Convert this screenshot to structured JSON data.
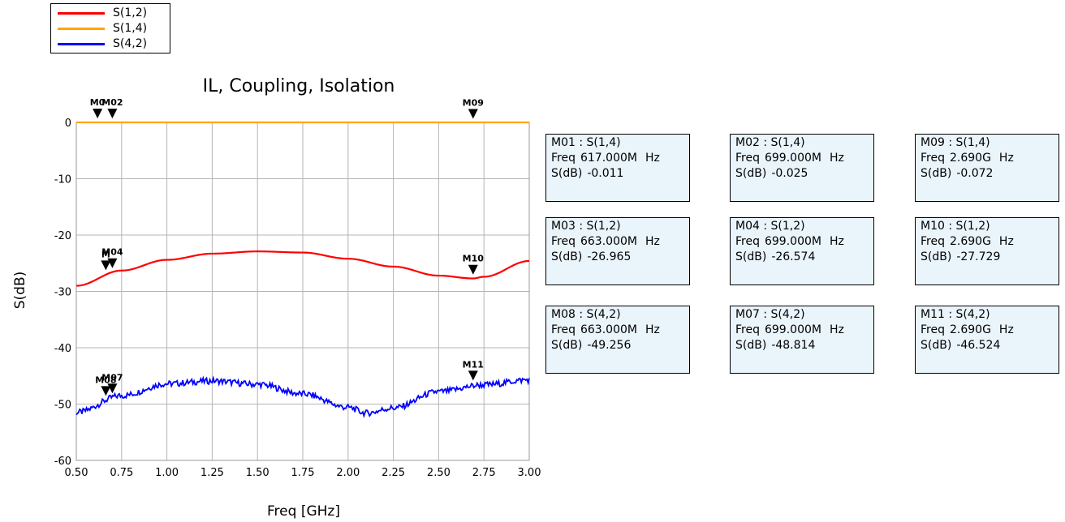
{
  "chart_data": {
    "type": "line",
    "title": "IL, Coupling, Isolation",
    "xlabel": "Freq [GHz]",
    "ylabel": "S(dB)",
    "xlim": [
      0.5,
      3.0
    ],
    "ylim": [
      -60,
      0
    ],
    "xticks": [
      "0.50",
      "0.75",
      "1.00",
      "1.25",
      "1.50",
      "1.75",
      "2.00",
      "2.25",
      "2.50",
      "2.75",
      "3.00"
    ],
    "yticks": [
      "0",
      "-10",
      "-20",
      "-30",
      "-40",
      "-50",
      "-60"
    ],
    "grid": true,
    "legend_position": "top-left",
    "series": [
      {
        "name": "S(1,2)",
        "color": "#ff0000",
        "x": [
          0.5,
          0.75,
          1.0,
          1.25,
          1.5,
          1.75,
          2.0,
          2.25,
          2.5,
          2.69,
          2.75,
          3.0
        ],
        "y": [
          -29.0,
          -26.3,
          -24.4,
          -23.3,
          -22.9,
          -23.1,
          -24.2,
          -25.6,
          -27.2,
          -27.7,
          -27.4,
          -24.6
        ]
      },
      {
        "name": "S(1,4)",
        "color": "#ffa500",
        "x": [
          0.5,
          3.0
        ],
        "y": [
          0,
          0
        ]
      },
      {
        "name": "S(4,2)",
        "color": "#0000ff",
        "x": [
          0.5,
          0.75,
          1.0,
          1.25,
          1.5,
          1.75,
          2.0,
          2.1,
          2.25,
          2.5,
          2.75,
          3.0
        ],
        "y": [
          -51.5,
          -48.5,
          -46.4,
          -45.9,
          -46.5,
          -48.2,
          -50.6,
          -51.6,
          -50.7,
          -47.8,
          -46.6,
          -45.7
        ]
      }
    ],
    "markers": [
      {
        "id": "M01",
        "series": "S(1,4)",
        "x": 0.617,
        "y": -0.011,
        "label": "M0",
        "show_label": true
      },
      {
        "id": "M02",
        "series": "S(1,4)",
        "x": 0.699,
        "y": -0.025,
        "label": "M02",
        "show_label": true
      },
      {
        "id": "M09",
        "series": "S(1,4)",
        "x": 2.69,
        "y": -0.072,
        "label": "M09",
        "show_label": true
      },
      {
        "id": "M03",
        "series": "S(1,2)",
        "x": 0.663,
        "y": -26.965,
        "label": "M",
        "show_label": true
      },
      {
        "id": "M04",
        "series": "S(1,2)",
        "x": 0.699,
        "y": -26.574,
        "label": "M04",
        "show_label": true
      },
      {
        "id": "M10",
        "series": "S(1,2)",
        "x": 2.69,
        "y": -27.729,
        "label": "M10",
        "show_label": true
      },
      {
        "id": "M08",
        "series": "S(4,2)",
        "x": 0.663,
        "y": -49.256,
        "label": "M08",
        "show_label": true
      },
      {
        "id": "M07",
        "series": "S(4,2)",
        "x": 0.699,
        "y": -48.814,
        "label": "M07",
        "show_label": true
      },
      {
        "id": "M11",
        "series": "S(4,2)",
        "x": 2.69,
        "y": -46.524,
        "label": "M11",
        "show_label": true
      }
    ]
  },
  "legend": [
    {
      "label": "S(1,2)",
      "color": "#ff0000"
    },
    {
      "label": "S(1,4)",
      "color": "#ffa500"
    },
    {
      "label": "S(4,2)",
      "color": "#0000ff"
    }
  ],
  "marker_boxes": [
    {
      "title": "M01 : S(1,4)",
      "freq_label": "Freq",
      "freq": "617.000M",
      "unit": "Hz",
      "s_label": "S(dB)",
      "s_value": "-0.011"
    },
    {
      "title": "M02 : S(1,4)",
      "freq_label": "Freq",
      "freq": "699.000M",
      "unit": "Hz",
      "s_label": "S(dB)",
      "s_value": "-0.025"
    },
    {
      "title": "M09 : S(1,4)",
      "freq_label": "Freq",
      "freq": "2.690G",
      "unit": "Hz",
      "s_label": "S(dB)",
      "s_value": "-0.072"
    },
    {
      "title": "M03 : S(1,2)",
      "freq_label": "Freq",
      "freq": "663.000M",
      "unit": "Hz",
      "s_label": "S(dB)",
      "s_value": "-26.965"
    },
    {
      "title": "M04 : S(1,2)",
      "freq_label": "Freq",
      "freq": "699.000M",
      "unit": "Hz",
      "s_label": "S(dB)",
      "s_value": "-26.574"
    },
    {
      "title": "M10 : S(1,2)",
      "freq_label": "Freq",
      "freq": "2.690G",
      "unit": "Hz",
      "s_label": "S(dB)",
      "s_value": "-27.729"
    },
    {
      "title": "M08 : S(4,2)",
      "freq_label": "Freq",
      "freq": "663.000M",
      "unit": "Hz",
      "s_label": "S(dB)",
      "s_value": "-49.256"
    },
    {
      "title": "M07 : S(4,2)",
      "freq_label": "Freq",
      "freq": "699.000M",
      "unit": "Hz",
      "s_label": "S(dB)",
      "s_value": "-48.814"
    },
    {
      "title": "M11 : S(4,2)",
      "freq_label": "Freq",
      "freq": "2.690G",
      "unit": "Hz",
      "s_label": "S(dB)",
      "s_value": "-46.524"
    }
  ]
}
